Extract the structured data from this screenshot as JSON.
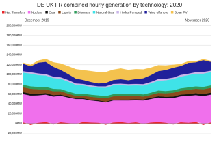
{
  "chart_data": {
    "type": "stacked_area",
    "title": "DE UK FR combined hourly generation by technology: 2020",
    "annotations": [
      "December 2019",
      "November 2020"
    ],
    "categories": [
      null,
      null,
      null,
      null,
      null,
      null,
      null,
      null,
      null,
      null,
      null,
      null,
      null,
      null,
      null,
      null,
      null,
      null,
      null,
      null,
      null,
      null,
      null,
      null,
      null,
      null
    ],
    "series": [
      {
        "name": "Net Transfers",
        "color": "#e8262a",
        "values": [
          2000,
          -3000,
          1500,
          3000,
          -2000,
          2500,
          1000,
          -1500,
          3000,
          2000,
          1500,
          -2500,
          2000,
          3000,
          1000,
          2500,
          -1000,
          2000,
          3000,
          1500,
          -2000,
          2500,
          1500,
          3000,
          -3000,
          2000
        ]
      },
      {
        "name": "Nuclear",
        "color": "#f070ec",
        "values": [
          58000,
          57000,
          56000,
          56000,
          55000,
          54000,
          52000,
          50000,
          47000,
          45000,
          44000,
          43000,
          45000,
          44000,
          46000,
          45000,
          47000,
          48000,
          50000,
          50000,
          52000,
          53000,
          55000,
          55000,
          56000,
          57000
        ]
      },
      {
        "name": "Coal",
        "color": "#111111",
        "values": [
          4000,
          4000,
          3500,
          3000,
          3000,
          2500,
          2000,
          1500,
          1500,
          1500,
          1500,
          1500,
          1500,
          2000,
          2000,
          2000,
          2000,
          2500,
          2500,
          3000,
          3000,
          3500,
          3500,
          4000,
          4000,
          4000
        ]
      },
      {
        "name": "Lignite",
        "color": "#8b4a1c",
        "values": [
          10000,
          10000,
          9000,
          8000,
          8000,
          7000,
          6000,
          5000,
          5000,
          6000,
          6000,
          7000,
          7000,
          7000,
          7000,
          7000,
          6000,
          6000,
          7000,
          7000,
          8000,
          8000,
          9000,
          9000,
          10000,
          10000
        ]
      },
      {
        "name": "Biomass",
        "color": "#2e9b5a",
        "values": [
          5000,
          5000,
          5000,
          5000,
          5000,
          4500,
          4500,
          4500,
          4500,
          4500,
          4500,
          4500,
          4500,
          4500,
          4500,
          4500,
          4500,
          4500,
          5000,
          5000,
          5000,
          5000,
          5000,
          5000,
          5000,
          5000
        ]
      },
      {
        "name": "Natural Gas",
        "color": "#3fe3e8",
        "values": [
          25000,
          26000,
          24000,
          23000,
          22000,
          21000,
          20000,
          18000,
          17000,
          16000,
          16000,
          17000,
          18000,
          18000,
          17000,
          17000,
          18000,
          19000,
          20000,
          22000,
          23000,
          24000,
          25000,
          26000,
          27000,
          27000
        ]
      },
      {
        "name": "Hydro Pumped",
        "color": "#c9b6e8",
        "values": [
          3000,
          3000,
          3500,
          3000,
          3000,
          3000,
          3500,
          3000,
          3000,
          3000,
          2500,
          3000,
          3000,
          3000,
          3000,
          3000,
          3000,
          3000,
          3500,
          3000,
          3000,
          3500,
          3000,
          3000,
          3500,
          3000
        ]
      },
      {
        "name": "Wind offshore",
        "color": "#20209a",
        "values": [
          15000,
          12000,
          22000,
          25000,
          20000,
          15000,
          12000,
          10000,
          8000,
          7000,
          6000,
          7000,
          8000,
          9000,
          8000,
          10000,
          12000,
          14000,
          16000,
          18000,
          20000,
          18000,
          22000,
          20000,
          24000,
          18000
        ]
      },
      {
        "name": "Solar PV",
        "color": "#f4c24e",
        "values": [
          2000,
          3000,
          4000,
          6000,
          9000,
          13000,
          16000,
          19000,
          20000,
          22000,
          23000,
          22000,
          21000,
          22000,
          21000,
          20000,
          18000,
          15000,
          12000,
          9000,
          6000,
          4000,
          3000,
          2000,
          2000,
          2000
        ]
      }
    ],
    "ylim": [
      -20000,
      205000
    ],
    "yticks": [
      {
        "value": -20000,
        "label": "-20,000MW"
      },
      {
        "value": 0,
        "label": "0MW"
      },
      {
        "value": 20000,
        "label": "20,000MW"
      },
      {
        "value": 40000,
        "label": "40,000MW"
      },
      {
        "value": 60000,
        "label": "60,000MW"
      },
      {
        "value": 80000,
        "label": "80,000MW"
      },
      {
        "value": 100000,
        "label": "100,000MW"
      },
      {
        "value": 120000,
        "label": "120,000MW"
      },
      {
        "value": 140000,
        "label": "140,000MW"
      },
      {
        "value": 160000,
        "label": "160,000MW"
      },
      {
        "value": 180000,
        "label": "180,000MW"
      },
      {
        "value": 200000,
        "label": "200,000MW"
      }
    ],
    "grid": true
  }
}
